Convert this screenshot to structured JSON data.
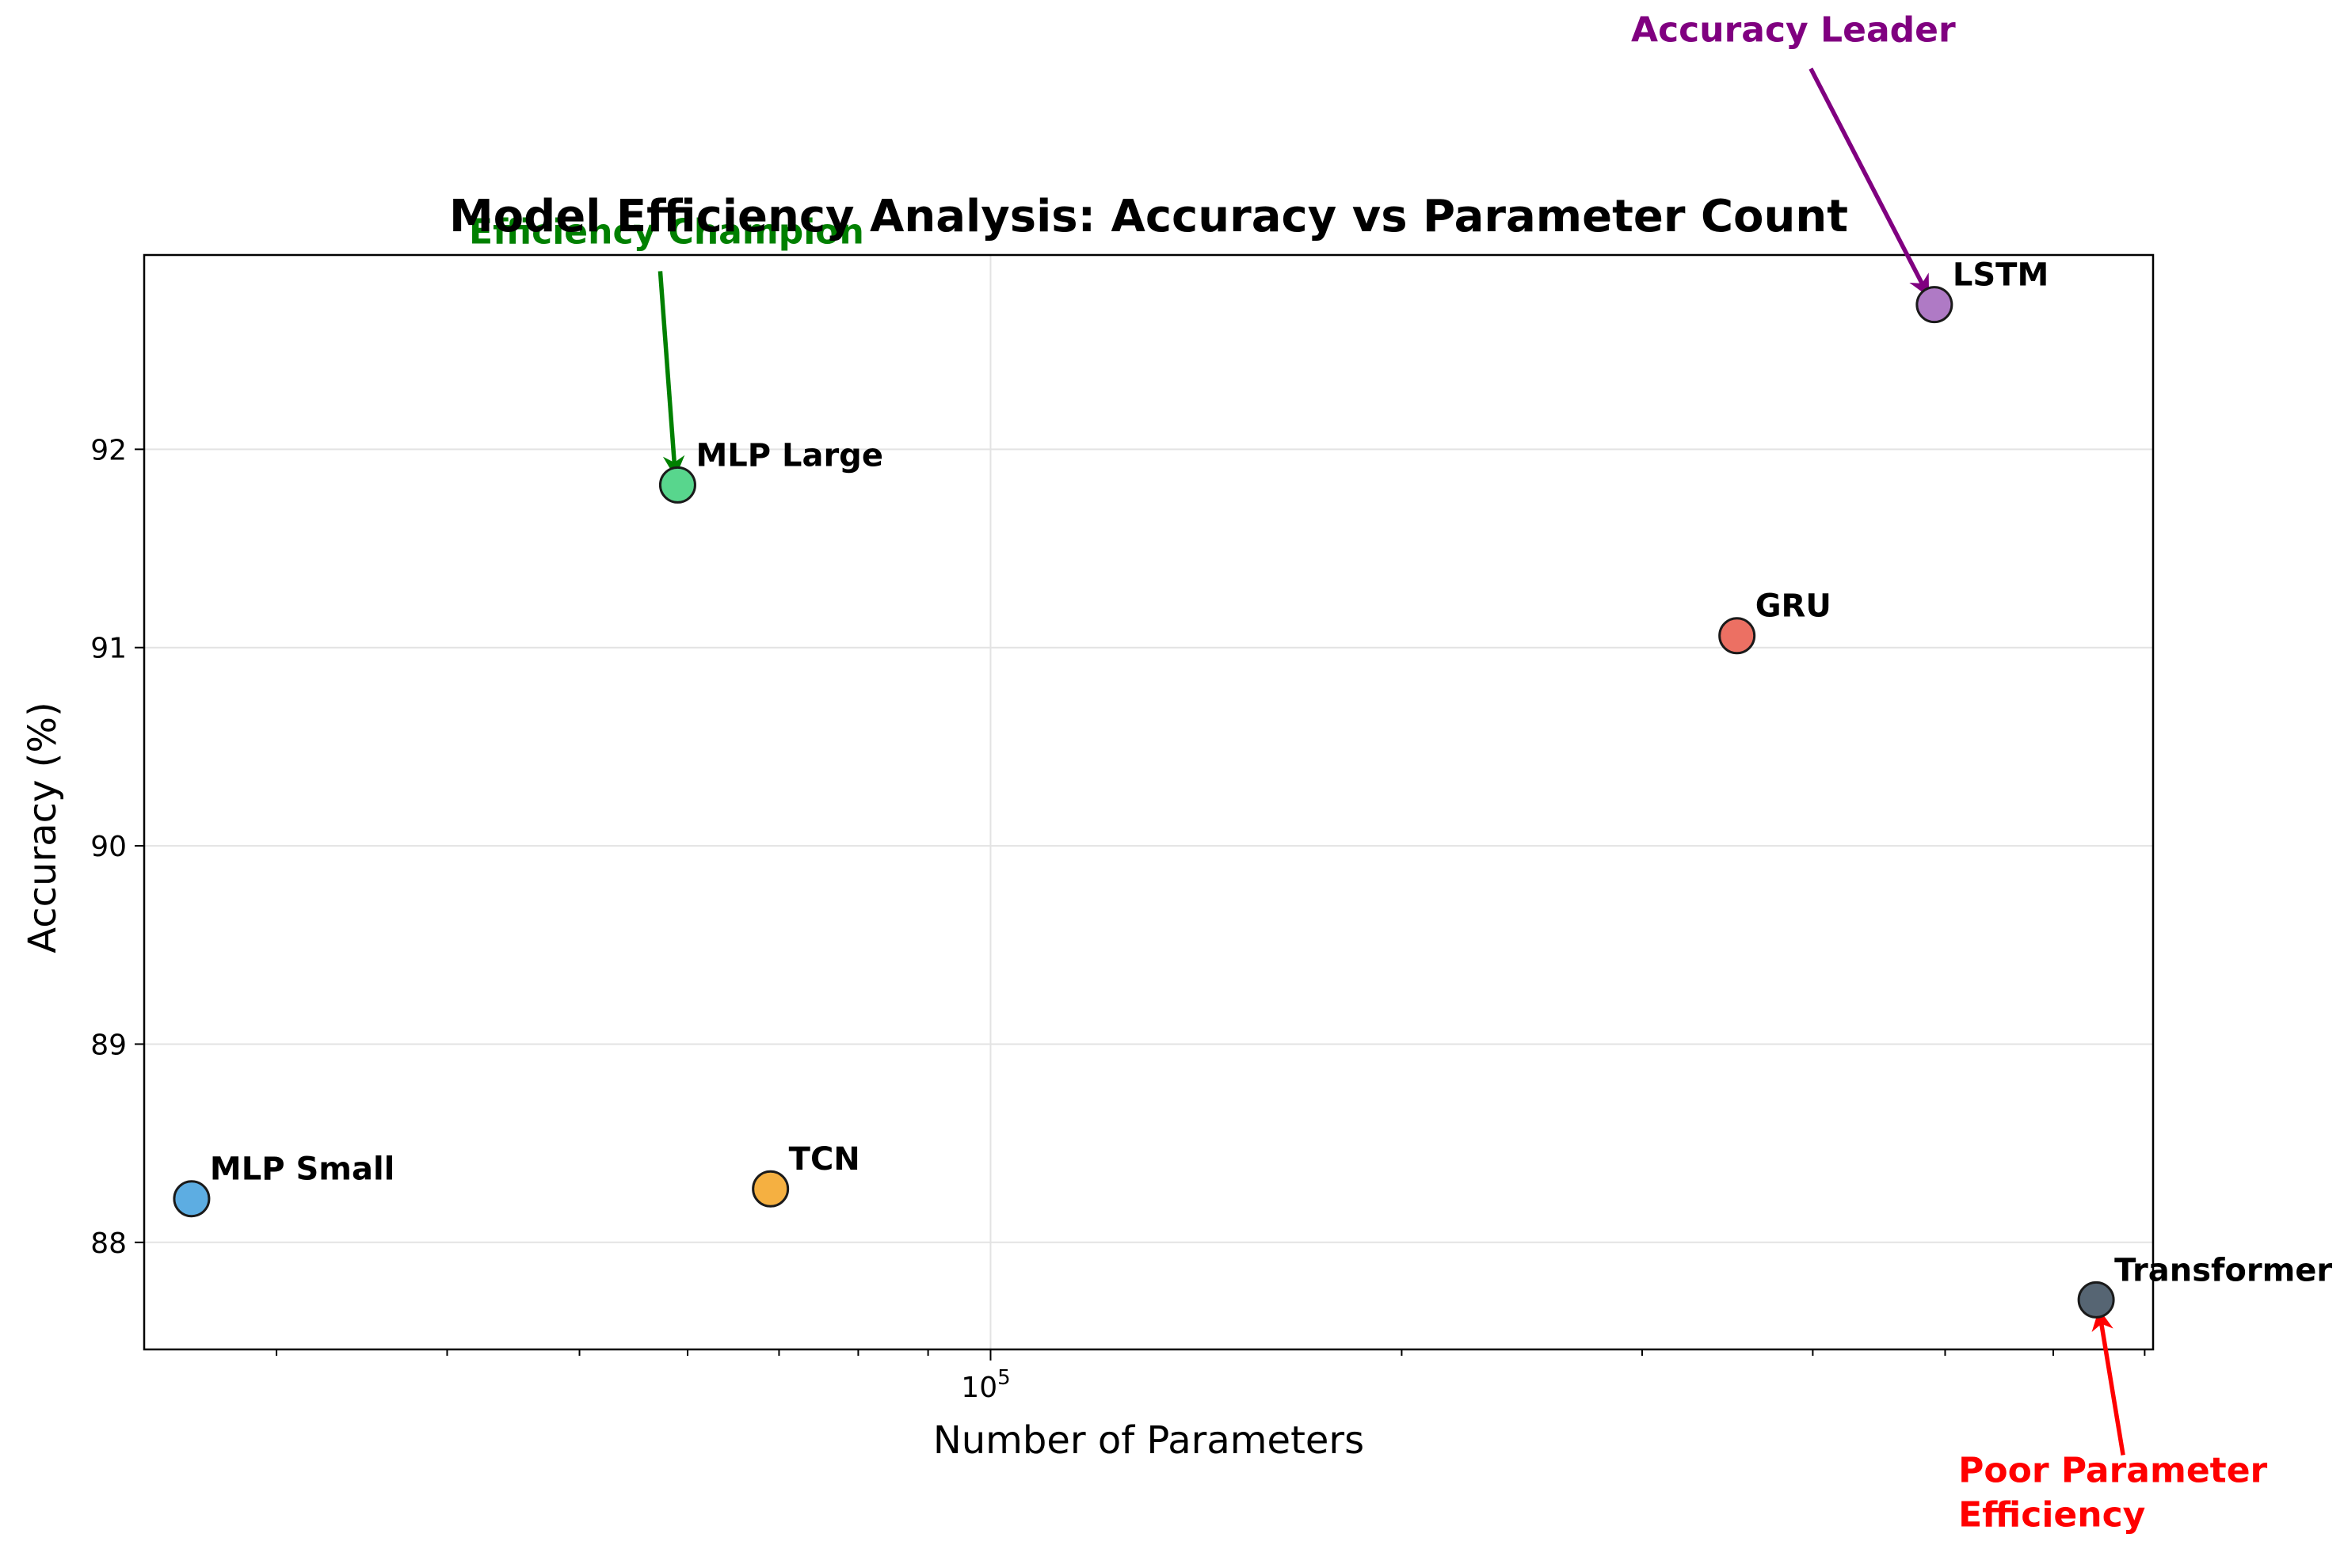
{
  "chart_data": {
    "type": "scatter",
    "title": "Model Efficiency Analysis: Accuracy vs Parameter Count",
    "xlabel": "Number of Parameters",
    "ylabel": "Accuracy (%)",
    "xscale": "log",
    "xlim": [
      24000,
      710000
    ],
    "ylim": [
      87.46,
      92.98
    ],
    "grid": true,
    "x_tick_labels": [
      {
        "value": 100000,
        "base": "10",
        "exponent": "5"
      }
    ],
    "y_tick_labels": [
      {
        "value": 88,
        "label": "88"
      },
      {
        "value": 89,
        "label": "89"
      },
      {
        "value": 90,
        "label": "90"
      },
      {
        "value": 91,
        "label": "91"
      },
      {
        "value": 92,
        "label": "92"
      }
    ],
    "points": [
      {
        "name": "MLP Small",
        "x": 26000,
        "y": 88.22,
        "color": "#5dade2"
      },
      {
        "name": "MLP Large",
        "x": 59000,
        "y": 91.82,
        "color": "#58d68d"
      },
      {
        "name": "TCN",
        "x": 69000,
        "y": 88.27,
        "color": "#f5b041"
      },
      {
        "name": "GRU",
        "x": 352000,
        "y": 91.06,
        "color": "#ec7063"
      },
      {
        "name": "LSTM",
        "x": 491000,
        "y": 92.73,
        "color": "#af7ac5"
      },
      {
        "name": "Transformer",
        "x": 645000,
        "y": 87.71,
        "color": "#566573"
      }
    ],
    "annotations": [
      {
        "lines": [
          "Efficiency Champion"
        ],
        "color": "#008000",
        "target": "MLP Large"
      },
      {
        "lines": [
          "Accuracy Leader"
        ],
        "color": "#800080",
        "target": "LSTM"
      },
      {
        "lines": [
          "Poor Parameter",
          "Efficiency"
        ],
        "color": "#ff0000",
        "target": "Transformer"
      }
    ]
  }
}
